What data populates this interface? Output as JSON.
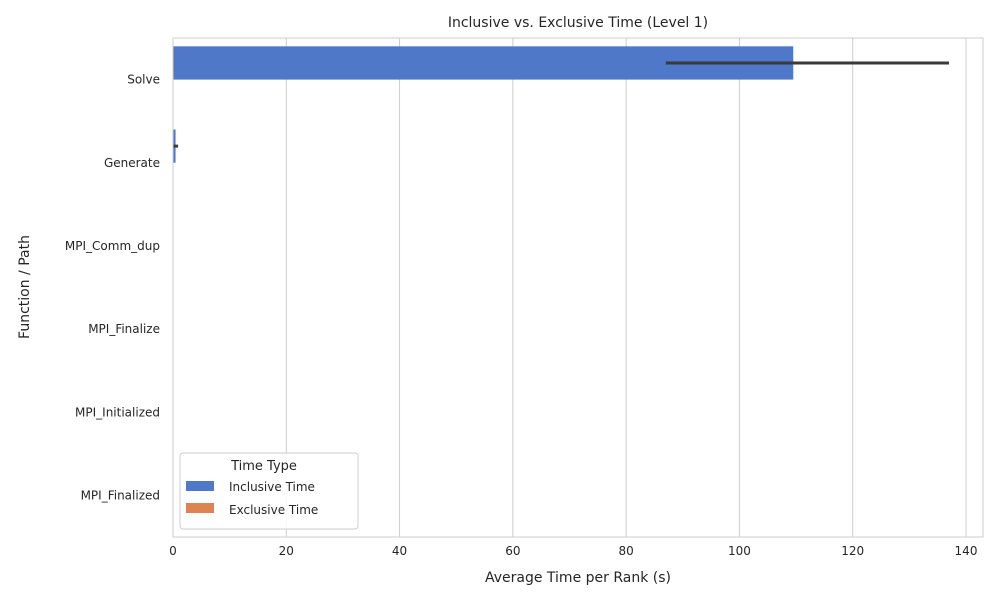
{
  "chart_data": {
    "type": "bar",
    "orientation": "horizontal",
    "title": "Inclusive vs. Exclusive Time (Level 1)",
    "xlabel": "Average Time per Rank (s)",
    "ylabel": "Function / Path",
    "xlim": [
      0,
      143
    ],
    "xticks": [
      0,
      20,
      40,
      60,
      80,
      100,
      120,
      140
    ],
    "grid": true,
    "legend_placement": "lower-left",
    "legend_title": "Time Type",
    "categories": [
      "Solve",
      "Generate",
      "MPI_Comm_dup",
      "MPI_Finalize",
      "MPI_Initialized",
      "MPI_Finalized"
    ],
    "series": [
      {
        "name": "Inclusive Time",
        "color": "#4f78c9",
        "values": [
          109.5,
          0.45,
          0.05,
          0.05,
          0.02,
          0.01
        ],
        "error_low": [
          87.0,
          0.0,
          null,
          null,
          null,
          null
        ],
        "error_high": [
          137.0,
          0.9,
          null,
          null,
          null,
          null
        ]
      },
      {
        "name": "Exclusive Time",
        "color": "#dd8452",
        "values": [
          0.0,
          0.0,
          0.0,
          0.0,
          0.0,
          0.0
        ],
        "error_low": [
          null,
          null,
          null,
          null,
          null,
          null
        ],
        "error_high": [
          null,
          null,
          null,
          null,
          null,
          null
        ]
      }
    ]
  }
}
